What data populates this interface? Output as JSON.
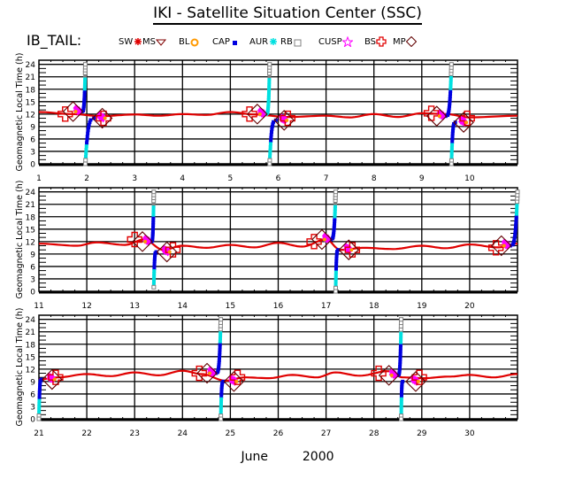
{
  "title": "IKI - Satellite Situation Center (SSC)",
  "satellite_label": "IB_TAIL:",
  "xlabel_month": "June",
  "xlabel_year": "2000",
  "legend": [
    {
      "label": "SW",
      "symbol": "none",
      "color": "#000000"
    },
    {
      "label": "MS",
      "symbol": "asterisk",
      "color": "#e00000"
    },
    {
      "label": "BL",
      "symbol": "triangle-down",
      "color": "#800000"
    },
    {
      "label": "CAP",
      "symbol": "circle-star",
      "color": "#ff9900"
    },
    {
      "label": "AUR",
      "symbol": "dot",
      "color": "#0000e0"
    },
    {
      "label": "RB",
      "symbol": "asterisk",
      "color": "#00e0e0"
    },
    {
      "label": "CUSP",
      "symbol": "square",
      "color": "#808080"
    },
    {
      "label": "BS",
      "symbol": "star",
      "color": "#ff00ff"
    },
    {
      "label": "MP",
      "symbol": "cross",
      "color": "#e00000"
    },
    {
      "label": "",
      "symbol": "diamond",
      "color": "#600000"
    }
  ],
  "chart_data": [
    {
      "type": "scatter",
      "panel": 1,
      "ylabel": "Geomagnetic Local Time (h)",
      "xlim": [
        1,
        11
      ],
      "ylim": [
        0,
        25
      ],
      "yticks": [
        0,
        3,
        6,
        9,
        12,
        15,
        18,
        21,
        24
      ],
      "xticks": [
        1,
        2,
        3,
        4,
        5,
        6,
        7,
        8,
        9,
        10
      ],
      "ms_wave": [
        [
          1,
          12.5
        ],
        [
          1.7,
          12.0
        ],
        [
          2.3,
          11.5
        ],
        [
          3.0,
          11.9
        ],
        [
          3.5,
          11.6
        ],
        [
          4.0,
          12.0
        ],
        [
          4.5,
          11.8
        ],
        [
          5.0,
          12.5
        ],
        [
          5.5,
          11.9
        ],
        [
          6.2,
          11.3
        ],
        [
          7.0,
          11.6
        ],
        [
          7.5,
          11.2
        ],
        [
          8.0,
          12.0
        ],
        [
          8.5,
          11.3
        ],
        [
          9.0,
          12.2
        ],
        [
          9.5,
          12.0
        ],
        [
          10.0,
          11.2
        ],
        [
          11.0,
          11.6
        ]
      ],
      "passes": [
        {
          "inbound_x": 1.9,
          "outbound_x": 2.15,
          "mp_in": [
            1.55,
            12.0
          ],
          "mp_out": [
            2.35,
            11.0
          ],
          "bs_in": [
            1.75,
            12.6
          ],
          "bs_out": [
            2.25,
            11.0
          ],
          "up_to": 24,
          "down_from": 0,
          "peak_x": 1.97
        },
        {
          "inbound_x": 5.75,
          "outbound_x": 5.95,
          "mp_in": [
            5.4,
            12.0
          ],
          "mp_out": [
            6.2,
            11.0
          ],
          "bs_in": [
            5.6,
            12.0
          ],
          "bs_out": [
            6.05,
            10.5
          ],
          "up_to": 24,
          "down_from": 0,
          "peak_x": 5.82
        },
        {
          "inbound_x": 9.5,
          "outbound_x": 9.7,
          "mp_in": [
            9.2,
            12.2
          ],
          "mp_out": [
            9.95,
            11.0
          ],
          "bs_in": [
            9.35,
            11.5
          ],
          "bs_out": [
            9.8,
            10.0
          ],
          "up_to": 24,
          "down_from": 0,
          "peak_x": 9.62
        }
      ]
    },
    {
      "type": "scatter",
      "panel": 2,
      "ylabel": "Geomagnetic Local Time (h)",
      "xlim": [
        11,
        21
      ],
      "ylim": [
        0,
        25
      ],
      "yticks": [
        0,
        3,
        6,
        9,
        12,
        15,
        18,
        21,
        24
      ],
      "xticks": [
        11,
        12,
        13,
        14,
        15,
        16,
        17,
        18,
        19,
        20
      ],
      "ms_wave": [
        [
          11,
          11.5
        ],
        [
          11.8,
          11.0
        ],
        [
          12.2,
          11.8
        ],
        [
          12.8,
          11.2
        ],
        [
          13.2,
          12.5
        ],
        [
          13.6,
          10.0
        ],
        [
          14.0,
          11.0
        ],
        [
          14.5,
          10.5
        ],
        [
          15.0,
          11.2
        ],
        [
          15.5,
          10.6
        ],
        [
          16.0,
          11.7
        ],
        [
          16.5,
          10.8
        ],
        [
          17.0,
          12.5
        ],
        [
          17.3,
          10.0
        ],
        [
          17.8,
          10.5
        ],
        [
          18.4,
          10.2
        ],
        [
          19.0,
          11.0
        ],
        [
          19.5,
          10.4
        ],
        [
          20.0,
          11.3
        ],
        [
          20.6,
          10.6
        ],
        [
          21.0,
          11.5
        ]
      ],
      "passes": [
        {
          "inbound_x": 13.35,
          "outbound_x": 13.45,
          "mp_in": [
            13.0,
            12.5
          ],
          "mp_out": [
            13.8,
            10.0
          ],
          "bs_in": [
            13.2,
            12.0
          ],
          "bs_out": [
            13.6,
            9.5
          ],
          "up_to": 24,
          "down_from": 1,
          "peak_x": 13.4
        },
        {
          "inbound_x": 17.1,
          "outbound_x": 17.25,
          "mp_in": [
            16.75,
            12.0
          ],
          "mp_out": [
            17.55,
            10.0
          ],
          "bs_in": [
            16.95,
            12.5
          ],
          "bs_out": [
            17.4,
            10.0
          ],
          "up_to": 24,
          "down_from": 0,
          "peak_x": 17.2
        },
        {
          "inbound_x": 20.85,
          "outbound_x": 21.0,
          "mp_in": [
            20.55,
            10.5
          ],
          "mp_out": null,
          "bs_in": [
            20.7,
            11.0
          ],
          "bs_out": null,
          "up_to": 24,
          "down_from": null,
          "peak_x": 21.0
        }
      ]
    },
    {
      "type": "scatter",
      "panel": 3,
      "ylabel": "Geomagnetic Local Time (h)",
      "xlim": [
        21,
        31
      ],
      "ylim": [
        0,
        25
      ],
      "yticks": [
        0,
        3,
        6,
        9,
        12,
        15,
        18,
        21,
        24
      ],
      "xticks": [
        21,
        22,
        23,
        24,
        25,
        26,
        27,
        28,
        29,
        30
      ],
      "ms_wave": [
        [
          21.0,
          9.5
        ],
        [
          21.4,
          10.0
        ],
        [
          22.0,
          10.8
        ],
        [
          22.5,
          10.3
        ],
        [
          23.0,
          11.2
        ],
        [
          23.5,
          10.5
        ],
        [
          24.0,
          11.6
        ],
        [
          24.4,
          10.8
        ],
        [
          24.9,
          9.2
        ],
        [
          25.3,
          10.0
        ],
        [
          25.8,
          9.8
        ],
        [
          26.3,
          10.6
        ],
        [
          26.8,
          10.0
        ],
        [
          27.2,
          11.2
        ],
        [
          27.7,
          10.4
        ],
        [
          28.3,
          11.5
        ],
        [
          28.6,
          10.0
        ],
        [
          29.0,
          9.8
        ],
        [
          29.6,
          10.2
        ],
        [
          30.0,
          10.6
        ],
        [
          30.5,
          10.0
        ],
        [
          31.0,
          10.8
        ]
      ],
      "passes": [
        {
          "inbound_x": null,
          "outbound_x": 21.05,
          "mp_in": null,
          "mp_out": [
            21.35,
            10.0
          ],
          "bs_in": null,
          "bs_out": [
            21.2,
            9.5
          ],
          "up_to": null,
          "down_from": 0,
          "peak_x": 21.0
        },
        {
          "inbound_x": 24.7,
          "outbound_x": 24.85,
          "mp_in": [
            24.35,
            11.0
          ],
          "mp_out": [
            25.15,
            10.0
          ],
          "bs_in": [
            24.55,
            11.0
          ],
          "bs_out": [
            25.0,
            9.0
          ],
          "up_to": 24,
          "down_from": 0,
          "peak_x": 24.8
        },
        {
          "inbound_x": 28.5,
          "outbound_x": 28.6,
          "mp_in": [
            28.1,
            11.0
          ],
          "mp_out": [
            28.95,
            10.0
          ],
          "bs_in": [
            28.35,
            10.5
          ],
          "bs_out": [
            28.8,
            9.0
          ],
          "up_to": 24,
          "down_from": 0,
          "peak_x": 28.57
        }
      ]
    }
  ]
}
